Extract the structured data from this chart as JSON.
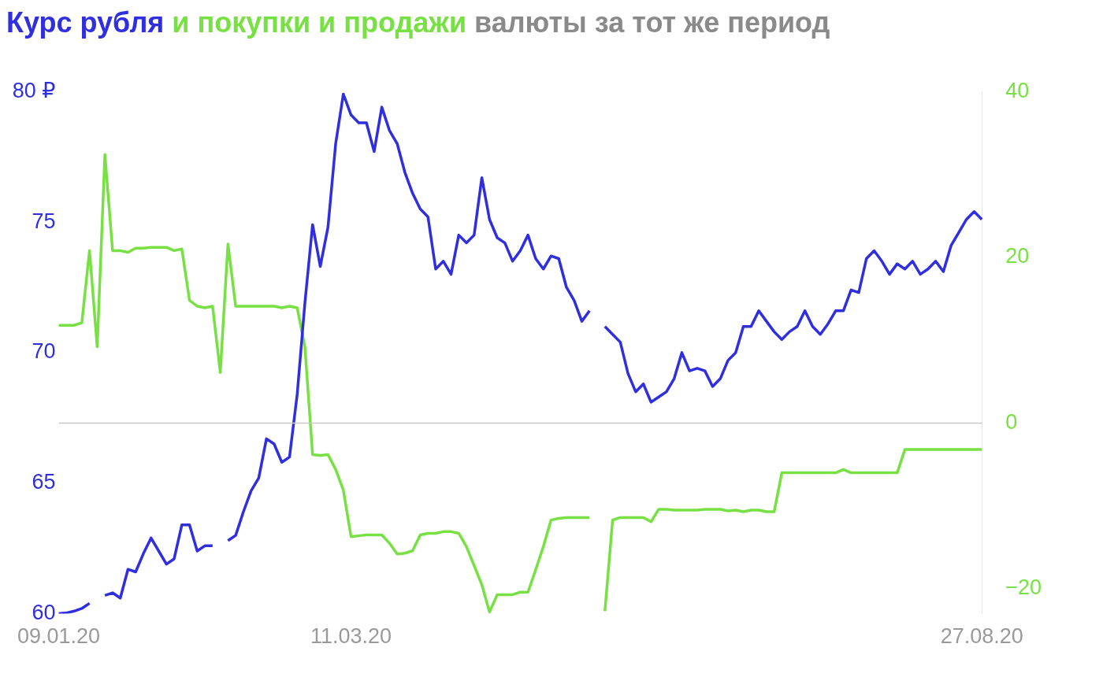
{
  "chart_data": {
    "type": "line",
    "title": "валюты за тот же период",
    "categories": [
      "09.01.20",
      null,
      null,
      null,
      null,
      null,
      null,
      null,
      null,
      null,
      null,
      null,
      null,
      null,
      null,
      null,
      null,
      null,
      null,
      null,
      null,
      null,
      null,
      null,
      null,
      null,
      null,
      null,
      null,
      null,
      null,
      null,
      null,
      null,
      null,
      null,
      null,
      null,
      "11.03.20",
      null,
      null,
      null,
      null,
      null,
      null,
      null,
      null,
      null,
      null,
      null,
      null,
      null,
      null,
      null,
      null,
      null,
      null,
      null,
      null,
      null,
      null,
      null,
      null,
      null,
      null,
      null,
      null,
      null,
      null,
      null,
      null,
      null,
      null,
      null,
      null,
      null,
      null,
      null,
      null,
      null,
      null,
      null,
      null,
      null,
      null,
      null,
      null,
      null,
      null,
      null,
      null,
      null,
      null,
      null,
      null,
      null,
      null,
      null,
      null,
      null,
      null,
      null,
      null,
      null,
      null,
      null,
      null,
      null,
      null,
      null,
      null,
      null,
      null,
      null,
      null,
      null,
      null,
      null,
      null,
      null,
      "27.08.20"
    ],
    "series": [
      {
        "name": "Курс рубля",
        "color": "#2f2fe0",
        "values": [
          60.0,
          60.03,
          60.1,
          60.2,
          60.4,
          null,
          60.7,
          60.8,
          60.6,
          61.7,
          61.6,
          62.3,
          62.9,
          62.4,
          61.9,
          62.1,
          63.4,
          63.4,
          62.4,
          62.6,
          62.6,
          null,
          62.8,
          63.0,
          63.9,
          64.7,
          65.2,
          66.7,
          66.5,
          65.8,
          66.0,
          68.4,
          71.9,
          74.9,
          73.3,
          74.8,
          78.0,
          79.9,
          79.1,
          78.8,
          78.8,
          77.7,
          79.4,
          78.5,
          78.0,
          76.9,
          76.1,
          75.5,
          75.2,
          73.2,
          73.5,
          73.0,
          74.5,
          74.2,
          74.5,
          76.7,
          75.1,
          74.4,
          74.2,
          73.5,
          73.9,
          74.5,
          73.6,
          73.2,
          73.7,
          73.6,
          72.5,
          72.0,
          71.2,
          71.6,
          null,
          71.0,
          70.7,
          70.4,
          69.2,
          68.5,
          68.8,
          68.1,
          68.3,
          68.5,
          69.0,
          70.0,
          69.3,
          69.4,
          69.3,
          68.7,
          69.0,
          69.7,
          70.0,
          71.0,
          71.0,
          71.6,
          71.2,
          70.8,
          70.5,
          70.8,
          71.0,
          71.6,
          71.0,
          70.7,
          71.1,
          71.6,
          71.6,
          72.4,
          72.3,
          73.6,
          73.9,
          73.5,
          73.0,
          73.4,
          73.2,
          73.5,
          73.0,
          73.2,
          73.5,
          73.1,
          74.1,
          74.6,
          75.1,
          75.4,
          75.1
        ]
      },
      {
        "name": "и покупки и продажи",
        "color": "#77e143",
        "axis": "y2",
        "values": [
          11.8,
          11.8,
          11.8,
          12.1,
          20.8,
          9.2,
          32.4,
          20.8,
          20.8,
          20.6,
          21.1,
          21.1,
          21.2,
          21.2,
          21.2,
          20.8,
          21.0,
          14.8,
          14.1,
          13.9,
          14.1,
          6.1,
          21.6,
          14.1,
          14.1,
          14.1,
          14.1,
          14.1,
          14.1,
          13.9,
          14.1,
          13.9,
          9.2,
          -3.8,
          -3.9,
          -3.8,
          -5.6,
          -8.1,
          -13.7,
          -13.6,
          -13.5,
          -13.5,
          -13.5,
          -14.5,
          -15.8,
          -15.7,
          -15.4,
          -13.5,
          -13.3,
          -13.3,
          -13.1,
          -13.1,
          -13.3,
          -14.9,
          -17.2,
          -19.5,
          -22.8,
          -20.7,
          -20.7,
          -20.7,
          -20.4,
          -20.4,
          -17.7,
          -14.9,
          -11.7,
          -11.5,
          -11.4,
          -11.4,
          -11.4,
          -11.4,
          null,
          -22.7,
          -11.7,
          -11.4,
          -11.4,
          -11.4,
          -11.4,
          -11.9,
          -10.4,
          -10.4,
          -10.5,
          -10.5,
          -10.5,
          -10.5,
          -10.4,
          -10.4,
          -10.4,
          -10.6,
          -10.5,
          -10.7,
          -10.5,
          -10.5,
          -10.7,
          -10.7,
          -6.0,
          -6.0,
          -6.0,
          -6.0,
          -6.0,
          -6.0,
          -6.0,
          -6.0,
          -5.6,
          -6.0,
          -6.0,
          -6.0,
          -6.0,
          -6.0,
          -6.0,
          -6.0,
          -3.2,
          -3.2,
          -3.2,
          -3.2,
          -3.2,
          -3.2,
          -3.2,
          -3.2,
          -3.2,
          -3.2,
          -3.2
        ]
      }
    ],
    "ylim": [
      60,
      80
    ],
    "yticks": [
      {
        "value": 80,
        "label": "80 ₽"
      },
      75,
      70,
      65,
      60
    ],
    "y2lim": [
      -23,
      40
    ],
    "y2ticks": [
      {
        "value": -20,
        "label": "−20"
      },
      0,
      20,
      40
    ],
    "ref_lines": [
      {
        "axis": "y2",
        "value": 0,
        "color": "#c8c8c8"
      }
    ],
    "grid": false,
    "legend": false,
    "marker": "none",
    "line_style": "solid"
  }
}
